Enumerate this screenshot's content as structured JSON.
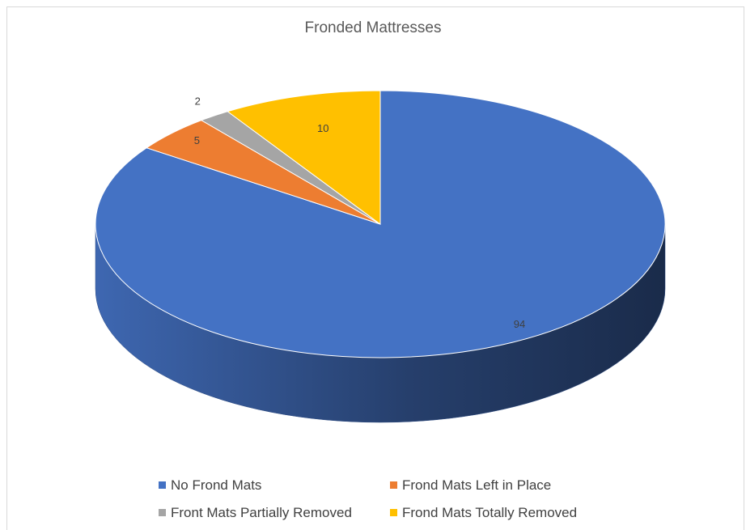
{
  "chart_data": {
    "type": "pie",
    "title": "Fronded Mattresses",
    "categories": [
      "No Frond Mats",
      "Frond Mats Left in Place",
      "Front Mats Partially Removed",
      "Frond Mats Totally Removed"
    ],
    "values": [
      94,
      5,
      2,
      10
    ],
    "colors": [
      "#4472c4",
      "#ed7d31",
      "#a5a5a5",
      "#ffc000"
    ],
    "style": "3d",
    "legend": "bottom"
  }
}
